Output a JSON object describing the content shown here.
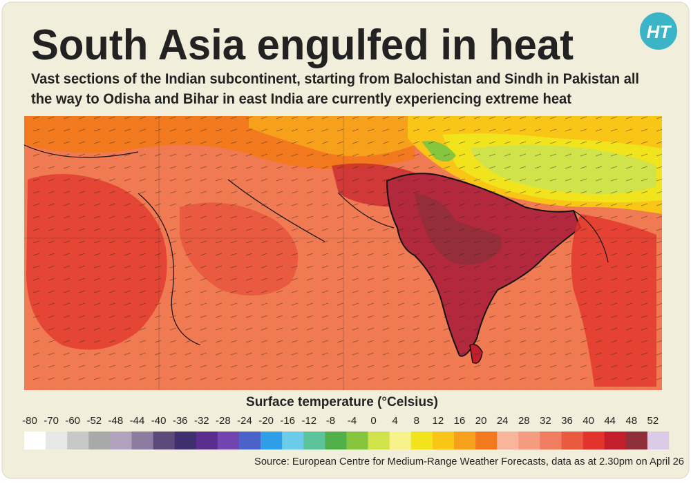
{
  "header": {
    "title": "South Asia engulfed in heat",
    "subtitle": [
      "Vast sections of the Indian subcontinent, starting from Balochistan and Sindh in Pakistan all",
      "the way to Odisha and Bihar in east India are currently experiencing extreme heat"
    ],
    "logo": "HT"
  },
  "legend": {
    "title": "Surface temperature (°Celsius)",
    "labels": [
      -80,
      -70,
      -60,
      -52,
      -48,
      -44,
      -40,
      -36,
      -32,
      -28,
      -24,
      -20,
      -16,
      -12,
      -8,
      -4,
      0,
      4,
      8,
      12,
      16,
      20,
      24,
      28,
      32,
      36,
      40,
      44,
      48,
      52
    ],
    "colors": [
      "#ffffff",
      "#e8e8e8",
      "#c8c8c8",
      "#a9a9a9",
      "#b3a2bd",
      "#8e7ba0",
      "#5b4a7a",
      "#3f2f6e",
      "#5a2e8e",
      "#7244b0",
      "#4a63c8",
      "#2e9ee8",
      "#6ccbe8",
      "#5cc39a",
      "#52b04a",
      "#86c63e",
      "#d0e34a",
      "#f7f38a",
      "#f2e41c",
      "#f9c516",
      "#f7a01c",
      "#f3791f",
      "#f9b49c",
      "#f59b80",
      "#f07d60",
      "#ea5a40",
      "#e2342c",
      "#c21e2c",
      "#8e2f3a",
      "#dccbe6"
    ]
  },
  "source": "Source: European Centre for Medium-Range Weather Forecasts, data as at 2.30pm on April 26"
}
